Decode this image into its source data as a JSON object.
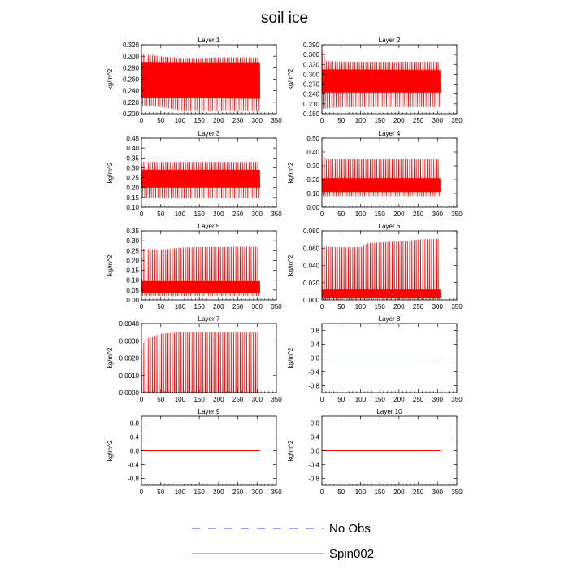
{
  "title": "soil ice",
  "chart_data": {
    "type": "line",
    "title": "soil ice",
    "legend": {
      "placement": "bottom-center",
      "entries": [
        {
          "name": "No Obs",
          "style": "dashed",
          "color": "#0000cc"
        },
        {
          "name": "Spin002",
          "style": "solid",
          "color": "#ff0000"
        }
      ]
    },
    "series_color": "#ff0000",
    "xlim": [
      0,
      350
    ],
    "xticks": [
      0,
      50,
      100,
      150,
      200,
      250,
      300,
      350
    ],
    "panels": [
      {
        "title": "Layer 1",
        "ylabel": "kg/m^2",
        "ylim": [
          0.2,
          0.32
        ],
        "yticks": [
          "0.200",
          "0.220",
          "0.240",
          "0.260",
          "0.280",
          "0.300",
          "0.320"
        ],
        "x_range": [
          0,
          307
        ],
        "cycles": 54,
        "env_high": [
          [
            0,
            0.304
          ],
          [
            50,
            0.3
          ],
          [
            100,
            0.297
          ],
          [
            150,
            0.297
          ],
          [
            200,
            0.298
          ],
          [
            250,
            0.298
          ],
          [
            307,
            0.298
          ]
        ],
        "env_low": [
          [
            0,
            0.214
          ],
          [
            50,
            0.212
          ],
          [
            100,
            0.206
          ],
          [
            150,
            0.206
          ],
          [
            200,
            0.206
          ],
          [
            250,
            0.206
          ],
          [
            307,
            0.206
          ]
        ],
        "band_high": [
          [
            0,
            0.29
          ],
          [
            307,
            0.288
          ]
        ],
        "band_low": [
          [
            0,
            0.228
          ],
          [
            307,
            0.226
          ]
        ]
      },
      {
        "title": "Layer 2",
        "ylabel": "kg/m^2",
        "ylim": [
          0.18,
          0.39
        ],
        "yticks": [
          "0.180",
          "0.210",
          "0.240",
          "0.270",
          "0.300",
          "0.330",
          "0.360",
          "0.390"
        ],
        "x_range": [
          0,
          307
        ],
        "cycles": 54,
        "env_high": [
          [
            0,
            0.375
          ],
          [
            10,
            0.34
          ],
          [
            100,
            0.338
          ],
          [
            307,
            0.338
          ]
        ],
        "env_low": [
          [
            0,
            0.195
          ],
          [
            50,
            0.2
          ],
          [
            100,
            0.2
          ],
          [
            307,
            0.2
          ]
        ],
        "band_high": [
          [
            0,
            0.315
          ],
          [
            307,
            0.312
          ]
        ],
        "band_low": [
          [
            0,
            0.245
          ],
          [
            307,
            0.245
          ]
        ]
      },
      {
        "title": "Layer 3",
        "ylabel": "kg/m^2",
        "ylim": [
          0.1,
          0.45
        ],
        "yticks": [
          "0.10",
          "0.15",
          "0.20",
          "0.25",
          "0.30",
          "0.35",
          "0.40",
          "0.45"
        ],
        "x_range": [
          0,
          307
        ],
        "cycles": 54,
        "env_high": [
          [
            0,
            0.33
          ],
          [
            100,
            0.33
          ],
          [
            307,
            0.33
          ]
        ],
        "env_low": [
          [
            0,
            0.15
          ],
          [
            100,
            0.145
          ],
          [
            307,
            0.145
          ]
        ],
        "band_high": [
          [
            0,
            0.29
          ],
          [
            307,
            0.29
          ]
        ],
        "band_low": [
          [
            0,
            0.2
          ],
          [
            307,
            0.2
          ]
        ]
      },
      {
        "title": "Layer 4",
        "ylabel": "kg/m^2",
        "ylim": [
          0.0,
          0.5
        ],
        "yticks": [
          "0.00",
          "0.10",
          "0.20",
          "0.30",
          "0.40",
          "0.50"
        ],
        "x_range": [
          0,
          307
        ],
        "cycles": 54,
        "env_high": [
          [
            0,
            0.39
          ],
          [
            10,
            0.35
          ],
          [
            307,
            0.35
          ]
        ],
        "env_low": [
          [
            0,
            0.08
          ],
          [
            307,
            0.08
          ]
        ],
        "band_high": [
          [
            0,
            0.21
          ],
          [
            307,
            0.21
          ]
        ],
        "band_low": [
          [
            0,
            0.11
          ],
          [
            307,
            0.11
          ]
        ]
      },
      {
        "title": "Layer 5",
        "ylabel": "kg/m^2",
        "ylim": [
          0.0,
          0.35
        ],
        "yticks": [
          "0.00",
          "0.05",
          "0.10",
          "0.15",
          "0.20",
          "0.25",
          "0.30",
          "0.35"
        ],
        "x_range": [
          0,
          307
        ],
        "cycles": 54,
        "env_high": [
          [
            0,
            0.26
          ],
          [
            50,
            0.255
          ],
          [
            100,
            0.265
          ],
          [
            150,
            0.268
          ],
          [
            307,
            0.27
          ]
        ],
        "env_low": [
          [
            0,
            0.02
          ],
          [
            307,
            0.02
          ]
        ],
        "band_high": [
          [
            0,
            0.095
          ],
          [
            307,
            0.095
          ]
        ],
        "band_low": [
          [
            0,
            0.035
          ],
          [
            307,
            0.035
          ]
        ]
      },
      {
        "title": "Layer 6",
        "ylabel": "kg/m^2",
        "ylim": [
          0.0,
          0.08
        ],
        "yticks": [
          "0.000",
          "0.020",
          "0.040",
          "0.060",
          "0.080"
        ],
        "x_range": [
          0,
          307
        ],
        "cycles": 54,
        "env_high": [
          [
            0,
            0.062
          ],
          [
            50,
            0.061
          ],
          [
            100,
            0.061
          ],
          [
            120,
            0.066
          ],
          [
            200,
            0.068
          ],
          [
            250,
            0.07
          ],
          [
            307,
            0.071
          ]
        ],
        "env_low": [
          [
            0,
            0.0005
          ],
          [
            307,
            0.0005
          ]
        ],
        "band_high": [
          [
            0,
            0.012
          ],
          [
            307,
            0.012
          ]
        ],
        "band_low": [
          [
            0,
            0.002
          ],
          [
            307,
            0.002
          ]
        ]
      },
      {
        "title": "Layer 7",
        "ylabel": "kg/m^2",
        "ylim": [
          0.0,
          0.004
        ],
        "yticks": [
          "0.0000",
          "0.0010",
          "0.0020",
          "0.0030",
          "0.0040"
        ],
        "x_range": [
          0,
          307
        ],
        "cycles": 54,
        "env_high": [
          [
            0,
            0.0026
          ],
          [
            10,
            0.0031
          ],
          [
            50,
            0.0034
          ],
          [
            100,
            0.0035
          ],
          [
            307,
            0.0035
          ]
        ],
        "env_low": [
          [
            0,
            0.0
          ],
          [
            307,
            0.0
          ]
        ],
        "band_high": [
          [
            0,
            0.0
          ],
          [
            307,
            0.0
          ]
        ],
        "band_low": [
          [
            0,
            0.0
          ],
          [
            307,
            0.0
          ]
        ]
      },
      {
        "title": "Layer 8",
        "ylabel": "kg/m^2",
        "ylim": [
          -1.0,
          1.0
        ],
        "yticks": [
          "-0.8",
          "-0.4",
          "0.0",
          "0.4",
          "0.8"
        ],
        "ytick_values": [
          -0.8,
          -0.4,
          0.0,
          0.4,
          0.8
        ],
        "x_range": [
          0,
          307
        ],
        "flat": 0.0
      },
      {
        "title": "Layer 9",
        "ylabel": "kg/m^2",
        "ylim": [
          -1.0,
          1.0
        ],
        "yticks": [
          "-0.8",
          "-0.4",
          "0.0",
          "0.4",
          "0.8"
        ],
        "ytick_values": [
          -0.8,
          -0.4,
          0.0,
          0.4,
          0.8
        ],
        "x_range": [
          0,
          307
        ],
        "flat": 0.0
      },
      {
        "title": "Layer 10",
        "ylabel": "kg/m^2",
        "ylim": [
          -1.0,
          1.0
        ],
        "yticks": [
          "-0.8",
          "-0.4",
          "0.0",
          "0.4",
          "0.8"
        ],
        "ytick_values": [
          -0.8,
          -0.4,
          0.0,
          0.4,
          0.8
        ],
        "x_range": [
          0,
          307
        ],
        "flat": 0.0
      }
    ]
  }
}
